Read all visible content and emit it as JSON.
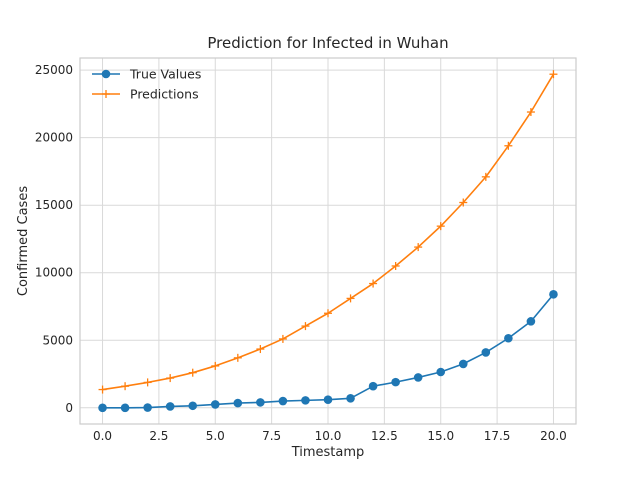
{
  "chart_data": {
    "type": "line",
    "title": "Prediction for Infected in Wuhan",
    "xlabel": "Timestamp",
    "ylabel": "Confirmed Cases",
    "xlim": [
      -1.0,
      21.0
    ],
    "ylim": [
      -1200,
      25900
    ],
    "xticks": [
      0.0,
      2.5,
      5.0,
      7.5,
      10.0,
      12.5,
      15.0,
      17.5,
      20.0
    ],
    "xtick_labels": [
      "0.0",
      "2.5",
      "5.0",
      "7.5",
      "10.0",
      "12.5",
      "15.0",
      "17.5",
      "20.0"
    ],
    "yticks": [
      0,
      5000,
      10000,
      15000,
      20000,
      25000
    ],
    "ytick_labels": [
      "0",
      "5000",
      "10000",
      "15000",
      "20000",
      "25000"
    ],
    "grid": true,
    "legend_position": "top-left",
    "x": [
      0,
      1,
      2,
      3,
      4,
      5,
      6,
      7,
      8,
      9,
      10,
      11,
      12,
      13,
      14,
      15,
      16,
      17,
      18,
      19,
      20
    ],
    "series": [
      {
        "name": "True Values",
        "color": "#1f77b4",
        "marker": "circle",
        "values": [
          0,
          0,
          20,
          100,
          150,
          250,
          350,
          400,
          500,
          550,
          600,
          700,
          1600,
          1900,
          2250,
          2650,
          3250,
          4100,
          5150,
          6400,
          8400
        ]
      },
      {
        "name": "Predictions",
        "color": "#ff7f0e",
        "marker": "plus",
        "values": [
          1350,
          1600,
          1880,
          2200,
          2600,
          3100,
          3700,
          4350,
          5100,
          6050,
          7000,
          8100,
          9200,
          10500,
          11900,
          13450,
          15200,
          17100,
          19400,
          21900,
          24700
        ]
      }
    ]
  }
}
